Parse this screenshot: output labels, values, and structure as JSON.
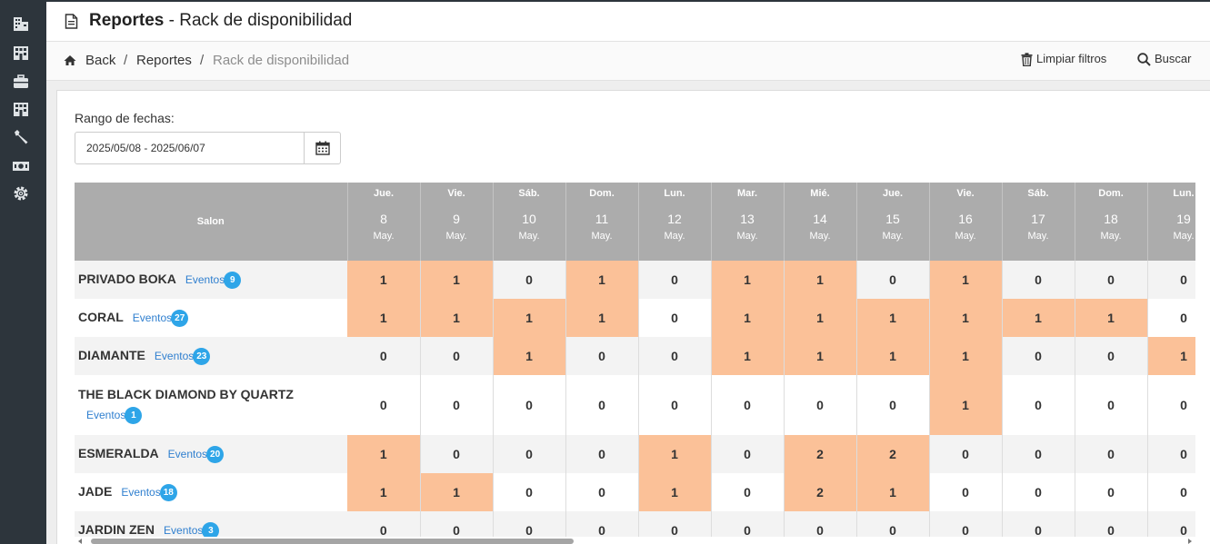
{
  "header": {
    "title_bold": "Reportes",
    "title_rest": " - Rack de disponibilidad",
    "icon": "document-icon"
  },
  "breadcrumb": {
    "items": [
      "Back",
      "Reportes",
      "Rack de disponibilidad"
    ],
    "separator": "/"
  },
  "actions": {
    "clear_label": "Limpiar filtros",
    "search_label": "Buscar"
  },
  "sidebar": {
    "icons": [
      "building-icon",
      "store-icon",
      "briefcase-icon",
      "store-icon",
      "wrench-icon",
      "money-icon",
      "gear-icon"
    ]
  },
  "filters": {
    "range_label": "Rango de fechas:",
    "range_value": "2025/05/08 - 2025/06/07"
  },
  "table": {
    "salon_header": "Salon",
    "events_label": "Eventos",
    "days": [
      {
        "dow": "Jue.",
        "day": "8",
        "mon": "May."
      },
      {
        "dow": "Vie.",
        "day": "9",
        "mon": "May."
      },
      {
        "dow": "Sáb.",
        "day": "10",
        "mon": "May."
      },
      {
        "dow": "Dom.",
        "day": "11",
        "mon": "May."
      },
      {
        "dow": "Lun.",
        "day": "12",
        "mon": "May."
      },
      {
        "dow": "Mar.",
        "day": "13",
        "mon": "May."
      },
      {
        "dow": "Mié.",
        "day": "14",
        "mon": "May."
      },
      {
        "dow": "Jue.",
        "day": "15",
        "mon": "May."
      },
      {
        "dow": "Vie.",
        "day": "16",
        "mon": "May."
      },
      {
        "dow": "Sáb.",
        "day": "17",
        "mon": "May."
      },
      {
        "dow": "Dom.",
        "day": "18",
        "mon": "May."
      },
      {
        "dow": "Lun.",
        "day": "19",
        "mon": "May."
      }
    ],
    "rows": [
      {
        "name": "PRIVADO BOKA",
        "events": "9",
        "wrap": false,
        "values": [
          1,
          1,
          0,
          1,
          0,
          1,
          1,
          0,
          1,
          0,
          0,
          0
        ]
      },
      {
        "name": "CORAL",
        "events": "27",
        "wrap": false,
        "values": [
          1,
          1,
          1,
          1,
          0,
          1,
          1,
          1,
          1,
          1,
          1,
          0
        ]
      },
      {
        "name": "DIAMANTE",
        "events": "23",
        "wrap": false,
        "values": [
          0,
          0,
          1,
          0,
          0,
          1,
          1,
          1,
          1,
          0,
          0,
          1
        ]
      },
      {
        "name": "THE BLACK DIAMOND BY QUARTZ",
        "events": "1",
        "wrap": true,
        "values": [
          0,
          0,
          0,
          0,
          0,
          0,
          0,
          0,
          1,
          0,
          0,
          0
        ]
      },
      {
        "name": "ESMERALDA",
        "events": "20",
        "wrap": false,
        "values": [
          1,
          0,
          0,
          0,
          1,
          0,
          2,
          2,
          0,
          0,
          0,
          0
        ]
      },
      {
        "name": "JADE",
        "events": "18",
        "wrap": false,
        "values": [
          1,
          1,
          0,
          0,
          1,
          0,
          2,
          1,
          0,
          0,
          0,
          0
        ]
      },
      {
        "name": "JARDIN ZEN",
        "events": "3",
        "wrap": false,
        "values": [
          0,
          0,
          0,
          0,
          0,
          0,
          0,
          0,
          0,
          0,
          0,
          0
        ]
      }
    ]
  },
  "colors": {
    "sidebar": "#2d353c",
    "header_cell": "#acacac",
    "occupied": "#fbc198",
    "badge": "#2ea5e8",
    "link": "#2f7fcf"
  }
}
